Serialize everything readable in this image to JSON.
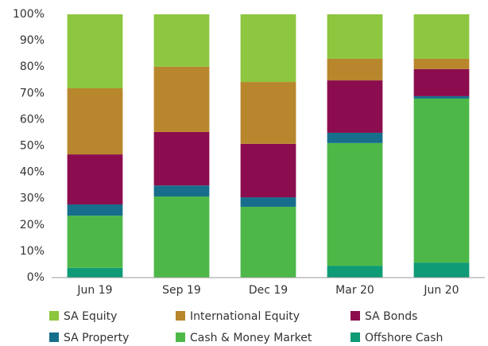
{
  "chart_data": {
    "type": "stacked_bar",
    "categories": [
      "Jun 19",
      "Sep 19",
      "Dec 19",
      "Mar 20",
      "Jun 20"
    ],
    "series": [
      {
        "name": "Offshore Cash",
        "color": "#0f9b76",
        "values": [
          3.7,
          0,
          0,
          4.5,
          5.7
        ]
      },
      {
        "name": "Cash & Money Market",
        "color": "#4db848",
        "values": [
          19.8,
          30.8,
          26.9,
          46.6,
          62.3
        ]
      },
      {
        "name": "SA Property",
        "color": "#176e8c",
        "values": [
          4.3,
          4.2,
          3.6,
          3.9,
          0.9
        ]
      },
      {
        "name": "SA Bonds",
        "color": "#8c0d4f",
        "values": [
          19.0,
          20.3,
          20.3,
          19.9,
          10.3
        ]
      },
      {
        "name": "International Equity",
        "color": "#b8862c",
        "values": [
          25.1,
          24.8,
          23.5,
          8.2,
          3.9
        ]
      },
      {
        "name": "SA Equity",
        "color": "#8dc63f",
        "values": [
          28.1,
          19.9,
          25.7,
          16.9,
          16.9
        ]
      }
    ],
    "ylim": [
      0,
      100
    ],
    "yticks": [
      {
        "value": 0,
        "label": "0%"
      },
      {
        "value": 10,
        "label": "10%"
      },
      {
        "value": 20,
        "label": "20%"
      },
      {
        "value": 30,
        "label": "30%"
      },
      {
        "value": 40,
        "label": "40%"
      },
      {
        "value": 50,
        "label": "50%"
      },
      {
        "value": 60,
        "label": "60%"
      },
      {
        "value": 70,
        "label": "70%"
      },
      {
        "value": 80,
        "label": "80%"
      },
      {
        "value": 90,
        "label": "90%"
      },
      {
        "value": 100,
        "label": "100%"
      }
    ],
    "legend_order": [
      "SA Equity",
      "International Equity",
      "SA Bonds",
      "SA Property",
      "Cash & Money Market",
      "Offshore Cash"
    ],
    "grid": false
  }
}
